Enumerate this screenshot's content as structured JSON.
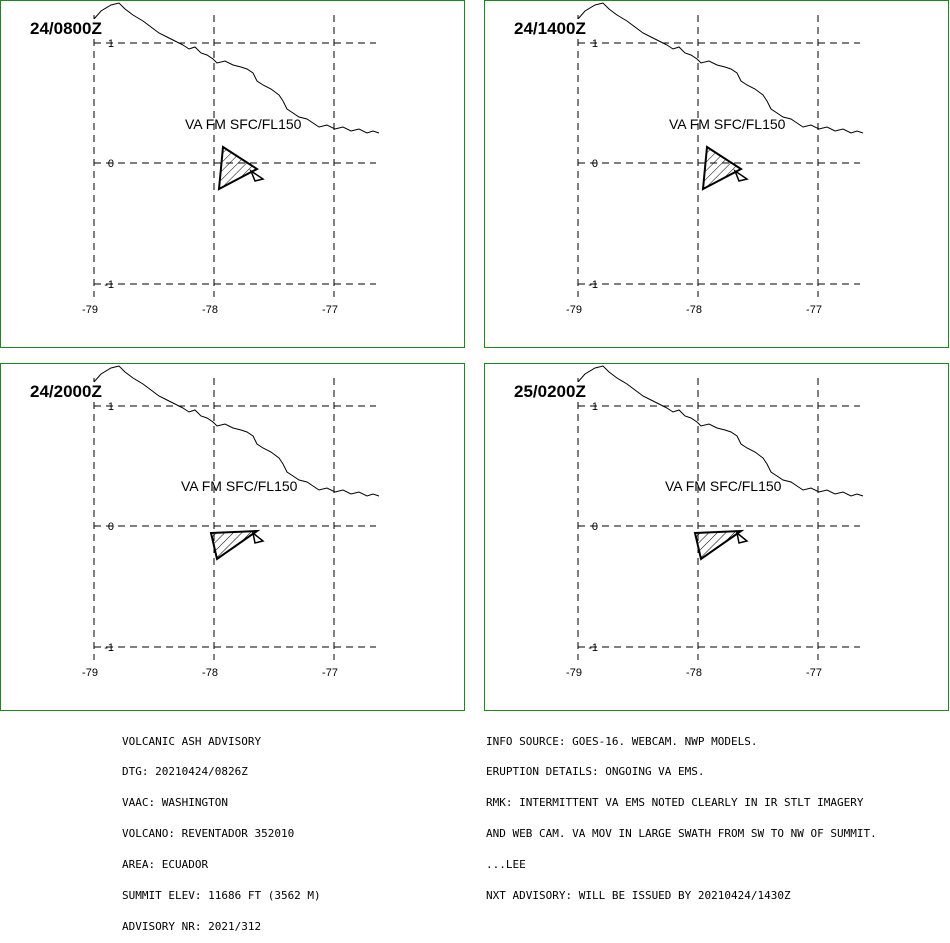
{
  "panels": [
    {
      "time": "24/0800Z",
      "label": "VA FM SFC/FL150",
      "variant": "a"
    },
    {
      "time": "24/1400Z",
      "label": "VA FM SFC/FL150",
      "variant": "a"
    },
    {
      "time": "24/2000Z",
      "label": "VA FM SFC/FL150",
      "variant": "b"
    },
    {
      "time": "25/0200Z",
      "label": "VA FM SFC/FL150",
      "variant": "b"
    }
  ],
  "axes": {
    "lon_labels": [
      "-79",
      "-78",
      "-77"
    ],
    "lat_labels": [
      "1",
      "0",
      "-1"
    ]
  },
  "footer": {
    "left": [
      "VOLCANIC ASH ADVISORY",
      "DTG: 20210424/0826Z",
      "VAAC: WASHINGTON",
      "VOLCANO: REVENTADOR 352010",
      "AREA: ECUADOR",
      "SUMMIT ELEV: 11686 FT (3562 M)",
      "ADVISORY NR: 2021/312"
    ],
    "right": [
      "INFO SOURCE: GOES-16. WEBCAM. NWP MODELS.",
      "ERUPTION DETAILS: ONGOING VA EMS.",
      "RMK: INTERMITTENT VA EMS NOTED CLEARLY IN IR STLT IMAGERY",
      "AND WEB CAM. VA MOV IN LARGE SWATH FROM SW TO NW OF SUMMIT.",
      "...LEE",
      "NXT ADVISORY: WILL BE ISSUED BY 20210424/1430Z"
    ]
  },
  "colors": {
    "border": "#1b8a1b",
    "line": "#000000",
    "background": "#ffffff"
  }
}
